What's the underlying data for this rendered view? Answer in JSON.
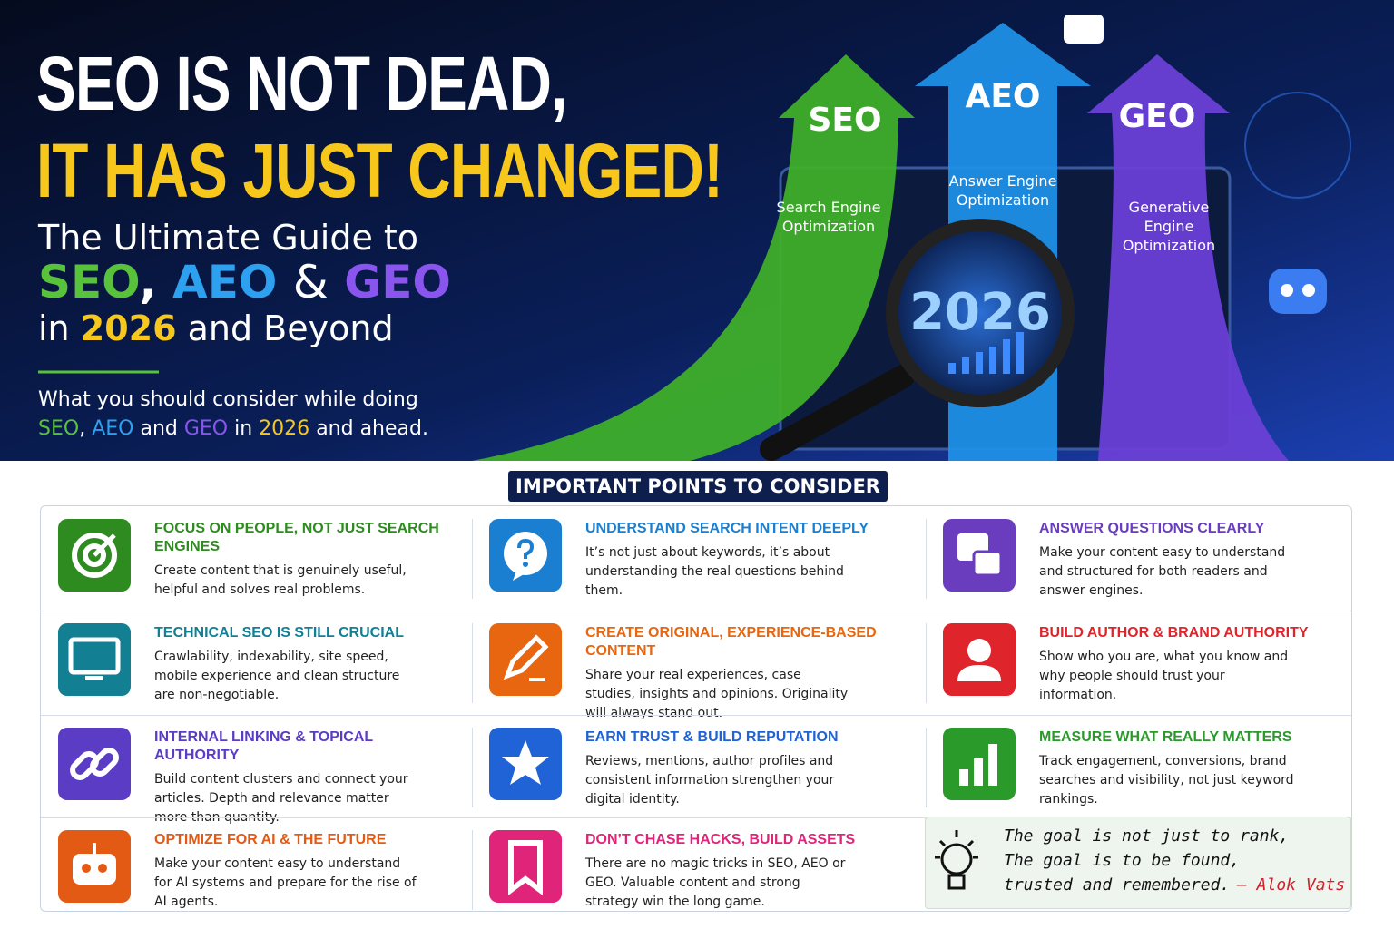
{
  "header": {
    "title_lines": [
      "SEO IS NOT DEAD,",
      "IT HAS JUST CHANGED!"
    ],
    "guide": {
      "intro": "The Ultimate Guide to",
      "seo": "SEO",
      "sep1": ",",
      "aeo": "AEO",
      "sep2": "&",
      "geo": "GEO",
      "in": "in",
      "year": "2026",
      "end": "and Beyond"
    },
    "consider": {
      "line1": "What you should consider while doing",
      "seo": "SEO",
      "sep1": ",",
      "aeo": "AEO",
      "and": "and",
      "geo": "GEO",
      "in": "in",
      "year": "2026",
      "end": "and ahead."
    }
  },
  "arrows": [
    {
      "label": "SEO",
      "description": "Search Engine Optimization",
      "color": "#3fae2a"
    },
    {
      "label": "AEO",
      "description": "Answer Engine Optimization",
      "color": "#1f8fe6"
    },
    {
      "label": "GEO",
      "description": "Generative Engine Optimization",
      "color": "#6a3fd6"
    }
  ],
  "magnifier_year": "2026",
  "section_title": "IMPORTANT POINTS TO CONSIDER",
  "points": [
    {
      "title": "FOCUS ON PEOPLE, NOT JUST SEARCH ENGINES",
      "text": "Create content that is genuinely useful, helpful and solves real problems.",
      "color": "#2e8b1f"
    },
    {
      "title": "UNDERSTAND SEARCH INTENT DEEPLY",
      "text": "It’s not just about keywords, it’s about understanding the real questions behind them.",
      "color": "#1a7fd0"
    },
    {
      "title": "ANSWER QUESTIONS CLEARLY",
      "text": "Make your content easy to understand and structured for both readers and answer engines.",
      "color": "#6a3dbf"
    },
    {
      "title": "TECHNICAL SEO IS STILL CRUCIAL",
      "text": "Crawlability, indexability, site speed, mobile experience and clean structure are non-negotiable.",
      "color": "#137f93"
    },
    {
      "title": "CREATE ORIGINAL, EXPERIENCE-BASED CONTENT",
      "text": "Share your real experiences, case studies, insights and opinions. Originality will always stand out.",
      "color": "#e8660f"
    },
    {
      "title": "BUILD AUTHOR & BRAND AUTHORITY",
      "text": "Show who you are, what you know and why people should trust your information.",
      "color": "#e0242c"
    },
    {
      "title": "INTERNAL LINKING & TOPICAL AUTHORITY",
      "text": "Build content clusters and connect your articles. Depth and relevance matter more than quantity.",
      "color": "#5b3cc4"
    },
    {
      "title": "EARN TRUST & BUILD REPUTATION",
      "text": "Reviews, mentions, author profiles and consistent information strengthen your digital identity.",
      "color": "#1f63d6"
    },
    {
      "title": "MEASURE WHAT REALLY MATTERS",
      "text": "Track engagement, conversions, brand searches and visibility, not just keyword rankings.",
      "color": "#2a9a2a"
    },
    {
      "title": "OPTIMIZE FOR AI & THE FUTURE",
      "text": "Make your content easy to understand for AI systems and prepare for the rise of AI agents.",
      "color": "#e35a14"
    },
    {
      "title": "DON’T CHASE HACKS, BUILD ASSETS",
      "text": "There are no magic tricks in SEO, AEO or GEO. Valuable content and strong strategy win the long game.",
      "color": "#e0247a"
    }
  ],
  "quote": {
    "lines": [
      "The goal is not just to rank,",
      "The goal is to be found,",
      "trusted and remembered."
    ],
    "author": "– Alok Vats"
  }
}
